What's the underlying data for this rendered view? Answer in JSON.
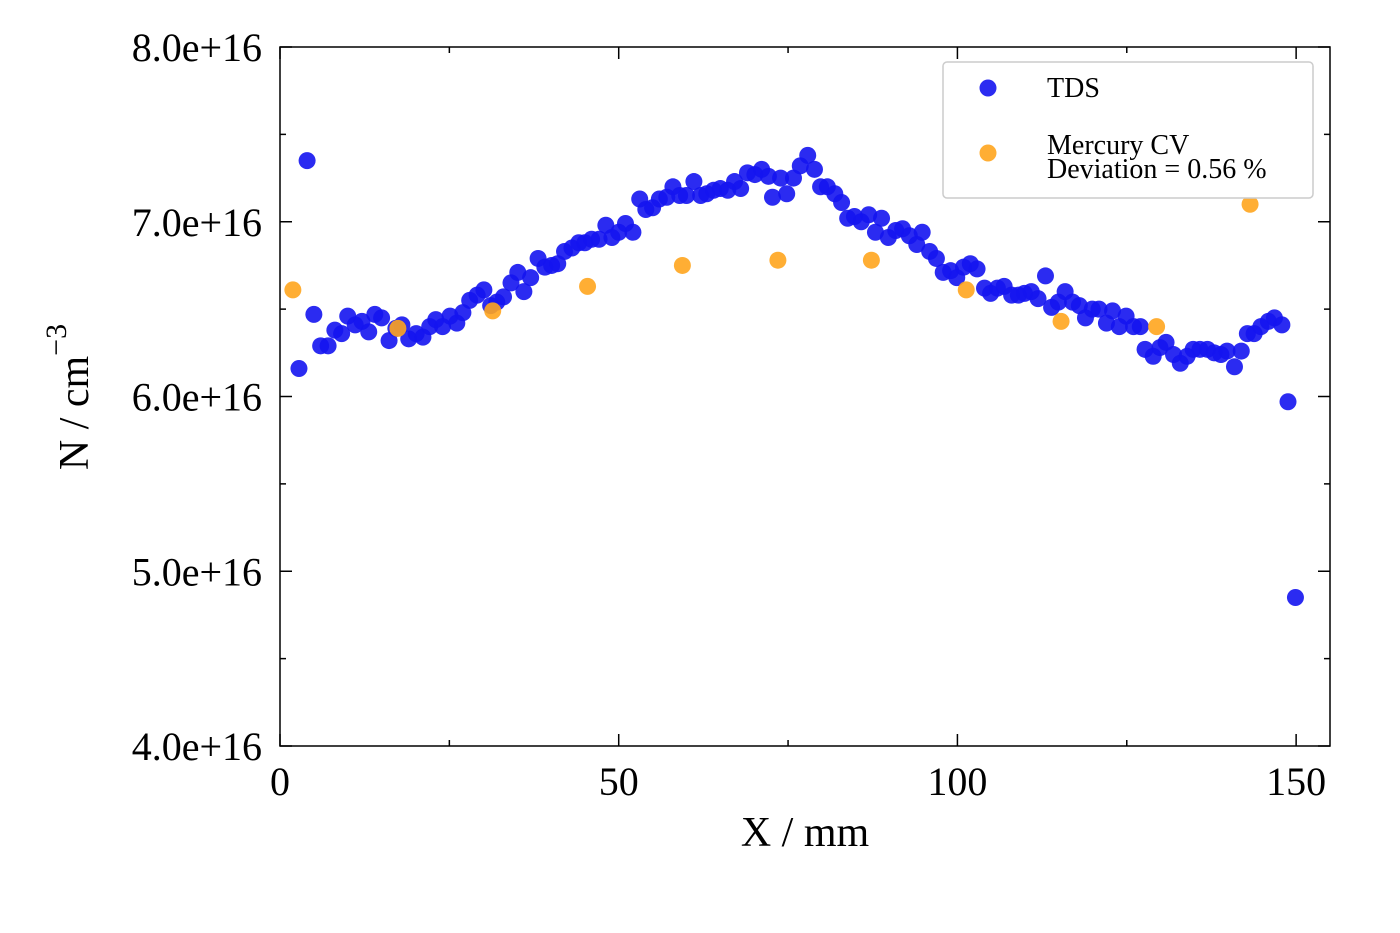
{
  "chart_data": {
    "type": "scatter",
    "x_label": "X / mm",
    "y_label": "N / cm",
    "y_label_superscript": "−3",
    "xlim": [
      0,
      155
    ],
    "ylim": [
      4e+16,
      8e+16
    ],
    "xticks": [
      0,
      50,
      100,
      150
    ],
    "yticks": [
      {
        "value": 4e+16,
        "label": "4.0e+16"
      },
      {
        "value": 5e+16,
        "label": "5.0e+16"
      },
      {
        "value": 6e+16,
        "label": "6.0e+16"
      },
      {
        "value": 7e+16,
        "label": "7.0e+16"
      },
      {
        "value": 8e+16,
        "label": "8.0e+16"
      }
    ],
    "xminorticks": [
      25,
      75,
      125
    ],
    "yminorticks": [
      4.5e+16,
      5.5e+16,
      6.5e+16,
      7.5e+16
    ],
    "legend": "upper right",
    "legend_note": "Deviation = 0.56 %",
    "series": [
      {
        "name": "TDS",
        "color": "#1414f0",
        "x": [
          2.8,
          4.0,
          5.0,
          6.0,
          7.1,
          8.1,
          9.1,
          10.0,
          11.1,
          12.1,
          13.1,
          14.0,
          15.0,
          16.1,
          17.1,
          18.0,
          19.0,
          20.1,
          21.1,
          22.1,
          23.0,
          24.0,
          25.1,
          26.1,
          27.0,
          28.0,
          29.1,
          30.1,
          31.1,
          32.0,
          33.0,
          34.1,
          35.1,
          36.0,
          37.0,
          38.1,
          39.1,
          40.1,
          41.0,
          42.0,
          43.1,
          44.1,
          45.0,
          46.0,
          47.1,
          48.1,
          49.0,
          50.0,
          51.0,
          52.1,
          53.1,
          54.0,
          55.0,
          56.0,
          57.1,
          58.0,
          59.0,
          60.0,
          61.1,
          62.1,
          63.0,
          64.0,
          65.0,
          66.1,
          67.1,
          68.0,
          69.0,
          70.1,
          71.1,
          72.1,
          72.7,
          73.9,
          74.8,
          75.8,
          76.8,
          77.9,
          78.9,
          79.8,
          80.8,
          81.9,
          82.9,
          83.8,
          84.8,
          85.8,
          86.9,
          87.9,
          88.8,
          89.8,
          90.9,
          91.9,
          92.9,
          94.0,
          94.8,
          95.9,
          96.9,
          97.9,
          99.0,
          99.9,
          100.9,
          101.9,
          102.9,
          104.0,
          104.9,
          105.9,
          106.9,
          108.0,
          109.0,
          109.9,
          110.9,
          111.9,
          113.0,
          113.9,
          114.9,
          115.9,
          117.0,
          118.0,
          118.9,
          119.9,
          120.9,
          122.0,
          122.9,
          123.9,
          124.9,
          126.0,
          127.0,
          127.7,
          128.9,
          129.9,
          130.8,
          131.9,
          132.9,
          133.9,
          134.8,
          135.8,
          136.9,
          137.9,
          138.9,
          139.8,
          140.9,
          141.9,
          142.8,
          143.8,
          144.8,
          145.9,
          146.8,
          147.9,
          148.8,
          149.9
        ],
        "values": [
          6.16e+16,
          7.35e+16,
          6.47e+16,
          6.29e+16,
          6.29e+16,
          6.38e+16,
          6.36e+16,
          6.46e+16,
          6.41e+16,
          6.43e+16,
          6.37e+16,
          6.47e+16,
          6.45e+16,
          6.32e+16,
          6.39e+16,
          6.41e+16,
          6.33e+16,
          6.36e+16,
          6.34e+16,
          6.4e+16,
          6.44e+16,
          6.4e+16,
          6.46e+16,
          6.42e+16,
          6.48e+16,
          6.55e+16,
          6.58e+16,
          6.61e+16,
          6.52e+16,
          6.54e+16,
          6.57e+16,
          6.65e+16,
          6.71e+16,
          6.6e+16,
          6.68e+16,
          6.79e+16,
          6.74e+16,
          6.75e+16,
          6.76e+16,
          6.83e+16,
          6.85e+16,
          6.88e+16,
          6.88e+16,
          6.9e+16,
          6.9e+16,
          6.98e+16,
          6.91e+16,
          6.94e+16,
          6.99e+16,
          6.94e+16,
          7.13e+16,
          7.07e+16,
          7.08e+16,
          7.13e+16,
          7.14e+16,
          7.2e+16,
          7.15e+16,
          7.15e+16,
          7.23e+16,
          7.15e+16,
          7.16e+16,
          7.18e+16,
          7.19e+16,
          7.18e+16,
          7.23e+16,
          7.19e+16,
          7.28e+16,
          7.27e+16,
          7.3e+16,
          7.26e+16,
          7.14e+16,
          7.25e+16,
          7.16e+16,
          7.25e+16,
          7.32e+16,
          7.38e+16,
          7.3e+16,
          7.2e+16,
          7.2e+16,
          7.16e+16,
          7.11e+16,
          7.02e+16,
          7.03e+16,
          7e+16,
          7.04e+16,
          6.94e+16,
          7.02e+16,
          6.91e+16,
          6.95e+16,
          6.96e+16,
          6.92e+16,
          6.87e+16,
          6.94e+16,
          6.83e+16,
          6.79e+16,
          6.71e+16,
          6.72e+16,
          6.68e+16,
          6.74e+16,
          6.76e+16,
          6.73e+16,
          6.62e+16,
          6.59e+16,
          6.62e+16,
          6.63e+16,
          6.58e+16,
          6.58e+16,
          6.59e+16,
          6.6e+16,
          6.56e+16,
          6.69e+16,
          6.51e+16,
          6.54e+16,
          6.6e+16,
          6.54e+16,
          6.52e+16,
          6.45e+16,
          6.5e+16,
          6.5e+16,
          6.42e+16,
          6.49e+16,
          6.4e+16,
          6.46e+16,
          6.4e+16,
          6.4e+16,
          6.27e+16,
          6.23e+16,
          6.28e+16,
          6.31e+16,
          6.24e+16,
          6.19e+16,
          6.23e+16,
          6.27e+16,
          6.27e+16,
          6.27e+16,
          6.25e+16,
          6.24e+16,
          6.26e+16,
          6.17e+16,
          6.26e+16,
          6.36e+16,
          6.36e+16,
          6.4e+16,
          6.43e+16,
          6.45e+16,
          6.41e+16,
          5.97e+16,
          4.85e+16
        ]
      },
      {
        "name": "Mercury CV",
        "color": "#ffa51e",
        "x": [
          1.9,
          17.4,
          31.4,
          45.4,
          59.4,
          73.5,
          87.3,
          101.3,
          115.3,
          129.4,
          143.2
        ],
        "values": [
          6.61e+16,
          6.39e+16,
          6.49e+16,
          6.63e+16,
          6.75e+16,
          6.78e+16,
          6.78e+16,
          6.61e+16,
          6.43e+16,
          6.4e+16,
          7.1e+16
        ]
      }
    ]
  }
}
